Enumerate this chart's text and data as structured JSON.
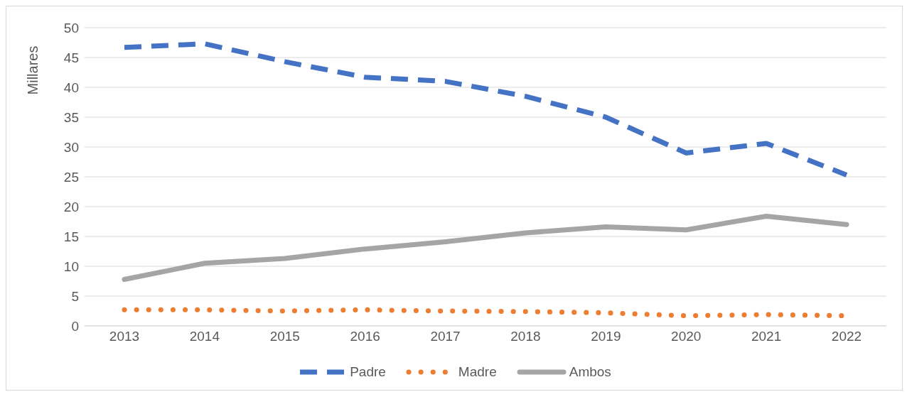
{
  "chart_data": {
    "type": "line",
    "ylabel": "Millares",
    "categories": [
      "2013",
      "2014",
      "2015",
      "2016",
      "2017",
      "2018",
      "2019",
      "2020",
      "2021",
      "2022"
    ],
    "series": [
      {
        "name": "Padre",
        "color": "#4472c4",
        "line_style": "dashed",
        "values": [
          46.7,
          47.3,
          44.3,
          41.7,
          41.0,
          38.5,
          35.0,
          29.0,
          30.6,
          25.3
        ]
      },
      {
        "name": "Madre",
        "color": "#ed7d31",
        "line_style": "dotted",
        "values": [
          2.7,
          2.7,
          2.5,
          2.7,
          2.5,
          2.4,
          2.2,
          1.7,
          1.9,
          1.7
        ]
      },
      {
        "name": "Ambos",
        "color": "#a5a5a5",
        "line_style": "solid",
        "values": [
          7.8,
          10.5,
          11.3,
          12.9,
          14.1,
          15.6,
          16.6,
          16.1,
          18.4,
          17.0
        ]
      }
    ],
    "ylim": [
      0,
      50
    ],
    "yticks": [
      0,
      5,
      10,
      15,
      20,
      25,
      30,
      35,
      40,
      45,
      50
    ],
    "grid": "y",
    "legend": "bottom",
    "marker": "none"
  }
}
